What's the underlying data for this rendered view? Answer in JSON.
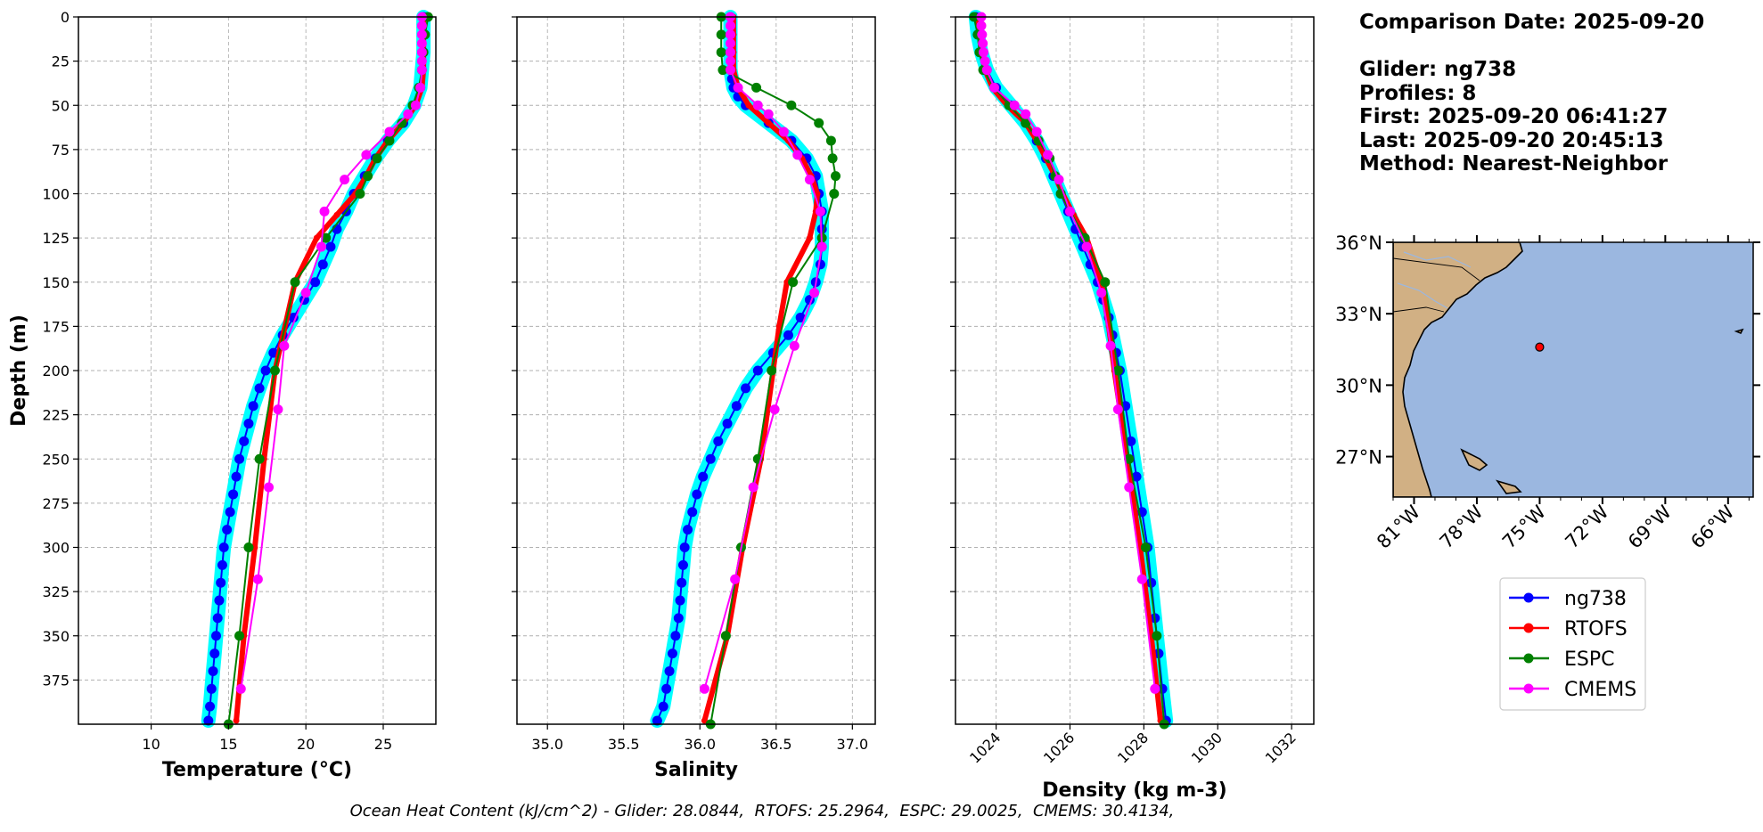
{
  "colors": {
    "ng738": "#0000ff",
    "ng738_spread": "#00ffff",
    "RTOFS": "#ff0000",
    "ESPC": "#008000",
    "CMEMS": "#ff00ff",
    "ocean": "#9bb7e0",
    "land": "#d1b084"
  },
  "info": {
    "date_line": "Comparison Date: 2025-09-20",
    "glider_line": "Glider: ng738",
    "profiles_line": "Profiles: 8",
    "first_line": "First: 2025-09-20 06:41:27",
    "last_line": "Last: 2025-09-20 20:45:13",
    "method_line": "Method: Nearest-Neighbor"
  },
  "footer": "Ocean Heat Content (kJ/cm^2) - Glider: 28.0844,  RTOFS: 25.2964,  ESPC: 29.0025,  CMEMS: 30.4134,",
  "legend": [
    "ng738",
    "RTOFS",
    "ESPC",
    "CMEMS"
  ],
  "map": {
    "lat_labels": [
      "36°N",
      "33°N",
      "30°N",
      "27°N"
    ],
    "lat_values": [
      36,
      33,
      30,
      27
    ],
    "lon_labels": [
      "81°W",
      "78°W",
      "75°W",
      "72°W",
      "69°W",
      "66°W"
    ],
    "lon_values": [
      -81,
      -78,
      -75,
      -72,
      -69,
      -66
    ],
    "extent": {
      "lon": [
        -82,
        -64.8
      ],
      "lat": [
        25.3,
        36.0
      ]
    },
    "glider_position": {
      "lon": -75.0,
      "lat": 31.6
    }
  },
  "chart_data": [
    {
      "type": "line",
      "xlabel": "Temperature (°C)",
      "ylabel": "Depth (m)",
      "xlim": [
        5.3,
        28.4
      ],
      "ylim": [
        400,
        0
      ],
      "xticks": [
        10,
        15,
        20,
        25
      ],
      "yticks": [
        0,
        25,
        50,
        75,
        100,
        125,
        150,
        175,
        200,
        225,
        250,
        275,
        300,
        325,
        350,
        375
      ],
      "grid": true,
      "series": [
        {
          "name": "ng738",
          "depth": [
            0,
            20,
            40,
            50,
            60,
            70,
            80,
            90,
            100,
            110,
            120,
            130,
            140,
            150,
            160,
            170,
            180,
            190,
            200,
            210,
            220,
            230,
            240,
            250,
            260,
            270,
            280,
            290,
            300,
            310,
            320,
            330,
            340,
            350,
            360,
            370,
            380,
            390,
            398
          ],
          "values": [
            27.6,
            27.6,
            27.4,
            27.0,
            26.3,
            25.3,
            24.5,
            23.8,
            23.1,
            22.6,
            22.0,
            21.6,
            21.1,
            20.6,
            19.9,
            19.2,
            18.5,
            17.9,
            17.4,
            17.0,
            16.6,
            16.3,
            16.0,
            15.7,
            15.5,
            15.3,
            15.1,
            14.9,
            14.7,
            14.6,
            14.5,
            14.4,
            14.3,
            14.2,
            14.1,
            14.0,
            13.9,
            13.8,
            13.7
          ]
        },
        {
          "name": "RTOFS",
          "depth": [
            0,
            10,
            20,
            30,
            40,
            50,
            60,
            70,
            80,
            90,
            100,
            112,
            125,
            150,
            200,
            250,
            300,
            350,
            398
          ],
          "values": [
            27.6,
            27.6,
            27.6,
            27.6,
            27.5,
            27.1,
            26.3,
            25.3,
            24.5,
            23.9,
            23.2,
            22.0,
            20.7,
            19.3,
            18.0,
            17.3,
            16.7,
            16.0,
            15.5
          ]
        },
        {
          "name": "ESPC",
          "depth": [
            0,
            10,
            20,
            30,
            40,
            50,
            60,
            70,
            80,
            90,
            100,
            125,
            150,
            200,
            250,
            300,
            350,
            400
          ],
          "values": [
            27.9,
            27.7,
            27.6,
            27.5,
            27.3,
            26.9,
            26.2,
            25.4,
            24.6,
            24.0,
            23.5,
            21.3,
            19.3,
            18.0,
            17.0,
            16.3,
            15.7,
            15.0
          ]
        },
        {
          "name": "CMEMS",
          "depth": [
            0,
            5,
            10,
            15,
            20,
            25,
            30,
            40,
            50,
            55,
            65,
            78,
            92,
            110,
            130,
            156,
            186,
            222,
            266,
            318,
            380
          ],
          "values": [
            27.5,
            27.5,
            27.5,
            27.5,
            27.5,
            27.5,
            27.5,
            27.4,
            27.1,
            26.6,
            25.4,
            23.9,
            22.5,
            21.2,
            21.0,
            20.0,
            18.6,
            18.2,
            17.6,
            16.9,
            15.8
          ]
        }
      ]
    },
    {
      "type": "line",
      "xlabel": "Salinity",
      "ylabel": "",
      "xlim": [
        34.8,
        37.15
      ],
      "ylim": [
        400,
        0
      ],
      "xticks": [
        35.0,
        35.5,
        36.0,
        36.5,
        37.0
      ],
      "xtick_labels": [
        "35.0",
        "35.5",
        "36.0",
        "36.5",
        "37.0"
      ],
      "grid": true,
      "series": [
        {
          "name": "ng738",
          "depth": [
            0,
            10,
            20,
            30,
            35,
            40,
            45,
            50,
            60,
            70,
            80,
            90,
            100,
            110,
            120,
            130,
            140,
            150,
            160,
            170,
            180,
            190,
            200,
            210,
            220,
            230,
            240,
            250,
            260,
            270,
            280,
            290,
            300,
            310,
            320,
            330,
            340,
            350,
            360,
            370,
            380,
            390,
            398
          ],
          "values": [
            36.2,
            36.2,
            36.2,
            36.2,
            36.21,
            36.22,
            36.25,
            36.3,
            36.45,
            36.6,
            36.7,
            36.76,
            36.78,
            36.8,
            36.8,
            36.8,
            36.79,
            36.76,
            36.72,
            36.66,
            36.58,
            36.48,
            36.38,
            36.3,
            36.24,
            36.18,
            36.12,
            36.07,
            36.02,
            35.98,
            35.95,
            35.92,
            35.9,
            35.89,
            35.88,
            35.87,
            35.86,
            35.84,
            35.82,
            35.8,
            35.78,
            35.76,
            35.72
          ]
        },
        {
          "name": "RTOFS",
          "depth": [
            0,
            10,
            20,
            30,
            40,
            50,
            60,
            70,
            80,
            90,
            100,
            110,
            125,
            150,
            175,
            200,
            250,
            300,
            350,
            398
          ],
          "values": [
            36.22,
            36.22,
            36.22,
            36.22,
            36.25,
            36.32,
            36.45,
            36.58,
            36.67,
            36.73,
            36.77,
            36.76,
            36.72,
            36.57,
            36.52,
            36.48,
            36.4,
            36.28,
            36.18,
            36.03
          ]
        },
        {
          "name": "ESPC",
          "depth": [
            0,
            10,
            20,
            30,
            40,
            50,
            60,
            70,
            80,
            90,
            100,
            125,
            150,
            200,
            250,
            300,
            350,
            400
          ],
          "values": [
            36.14,
            36.14,
            36.14,
            36.15,
            36.37,
            36.6,
            36.78,
            36.86,
            36.87,
            36.89,
            36.88,
            36.8,
            36.61,
            36.47,
            36.38,
            36.27,
            36.17,
            36.07
          ]
        },
        {
          "name": "CMEMS",
          "depth": [
            0,
            5,
            10,
            15,
            20,
            25,
            30,
            40,
            50,
            55,
            65,
            78,
            92,
            110,
            130,
            156,
            186,
            222,
            266,
            318,
            380
          ],
          "values": [
            36.2,
            36.2,
            36.2,
            36.2,
            36.2,
            36.2,
            36.2,
            36.25,
            36.38,
            36.45,
            36.55,
            36.64,
            36.72,
            36.79,
            36.8,
            36.75,
            36.62,
            36.49,
            36.35,
            36.23,
            36.03
          ]
        }
      ]
    },
    {
      "type": "line",
      "xlabel": "Density (kg m-3)",
      "ylabel": "",
      "xlim": [
        1022.9,
        1032.6
      ],
      "ylim": [
        400,
        0
      ],
      "xticks": [
        1024,
        1026,
        1028,
        1030,
        1032
      ],
      "xtick_labels": [
        "1024",
        "1026",
        "1028",
        "1030",
        "1032"
      ],
      "grid": true,
      "series": [
        {
          "name": "ng738",
          "depth": [
            0,
            10,
            20,
            30,
            40,
            50,
            60,
            70,
            80,
            90,
            100,
            110,
            120,
            130,
            140,
            150,
            160,
            170,
            180,
            190,
            200,
            220,
            240,
            260,
            280,
            300,
            320,
            340,
            360,
            380,
            398
          ],
          "values": [
            1023.45,
            1023.5,
            1023.6,
            1023.75,
            1024.0,
            1024.4,
            1024.8,
            1025.1,
            1025.35,
            1025.55,
            1025.75,
            1025.95,
            1026.15,
            1026.35,
            1026.55,
            1026.75,
            1026.9,
            1027.05,
            1027.15,
            1027.25,
            1027.35,
            1027.5,
            1027.65,
            1027.8,
            1027.95,
            1028.1,
            1028.2,
            1028.3,
            1028.4,
            1028.5,
            1028.6
          ]
        },
        {
          "name": "RTOFS",
          "depth": [
            0,
            10,
            20,
            30,
            40,
            50,
            60,
            70,
            80,
            90,
            100,
            112,
            125,
            150,
            175,
            200,
            250,
            300,
            350,
            398
          ],
          "values": [
            1023.5,
            1023.55,
            1023.6,
            1023.7,
            1023.9,
            1024.3,
            1024.8,
            1025.1,
            1025.35,
            1025.6,
            1025.8,
            1026.1,
            1026.45,
            1026.85,
            1027.05,
            1027.2,
            1027.55,
            1027.9,
            1028.2,
            1028.45
          ]
        },
        {
          "name": "ESPC",
          "depth": [
            0,
            10,
            20,
            30,
            40,
            50,
            60,
            70,
            80,
            90,
            100,
            125,
            150,
            200,
            250,
            300,
            350,
            400
          ],
          "values": [
            1023.4,
            1023.5,
            1023.55,
            1023.65,
            1023.95,
            1024.35,
            1024.8,
            1025.15,
            1025.45,
            1025.6,
            1025.75,
            1026.4,
            1026.95,
            1027.3,
            1027.6,
            1028.05,
            1028.35,
            1028.55
          ]
        },
        {
          "name": "CMEMS",
          "depth": [
            0,
            5,
            10,
            15,
            20,
            25,
            30,
            40,
            50,
            55,
            65,
            78,
            92,
            110,
            130,
            156,
            186,
            222,
            266,
            318,
            380
          ],
          "values": [
            1023.6,
            1023.6,
            1023.62,
            1023.64,
            1023.66,
            1023.7,
            1023.75,
            1023.95,
            1024.5,
            1024.8,
            1025.1,
            1025.4,
            1025.7,
            1026.0,
            1026.45,
            1026.85,
            1027.1,
            1027.3,
            1027.6,
            1027.95,
            1028.3
          ]
        }
      ]
    }
  ]
}
